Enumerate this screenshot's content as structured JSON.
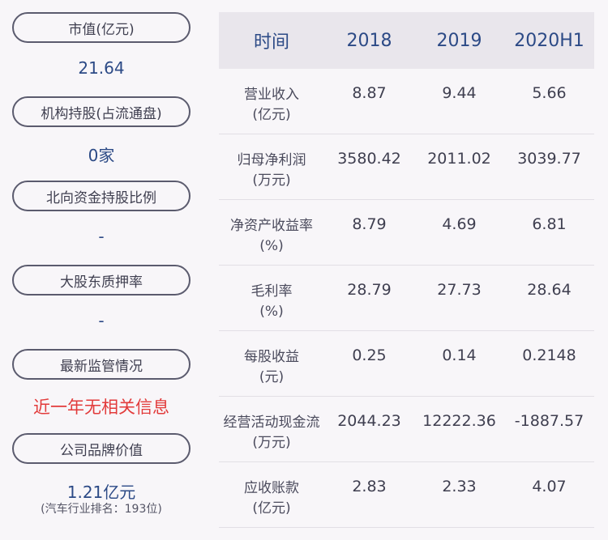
{
  "left": {
    "items": [
      {
        "label": "市值(亿元)",
        "value": "21.64"
      },
      {
        "label": "机构持股(占流通盘)",
        "value": "0家"
      },
      {
        "label": "北向资金持股比例",
        "value": "-"
      },
      {
        "label": "大股东质押率",
        "value": "-"
      },
      {
        "label": "最新监管情况",
        "value": "近一年无相关信息"
      },
      {
        "label": "公司品牌价值",
        "value": "1.21亿元",
        "note": "(汽车行业排名：193位)"
      }
    ]
  },
  "table": {
    "headers": [
      "时间",
      "2018",
      "2019",
      "2020H1"
    ],
    "rows": [
      {
        "name": "营业收入",
        "unit": "(亿元)",
        "values": [
          "8.87",
          "9.44",
          "5.66"
        ]
      },
      {
        "name": "归母净利润",
        "unit": "(万元)",
        "values": [
          "3580.42",
          "2011.02",
          "3039.77"
        ]
      },
      {
        "name": "净资产收益率",
        "unit": "(%)",
        "values": [
          "8.79",
          "4.69",
          "6.81"
        ]
      },
      {
        "name": "毛利率",
        "unit": "(%)",
        "values": [
          "28.79",
          "27.73",
          "28.64"
        ]
      },
      {
        "name": "每股收益",
        "unit": "(元)",
        "values": [
          "0.25",
          "0.14",
          "0.2148"
        ]
      },
      {
        "name": "经营活动现金流",
        "unit": "(万元)",
        "values": [
          "2044.23",
          "12222.36",
          "-1887.57"
        ]
      },
      {
        "name": "应收账款",
        "unit": "(亿元)",
        "values": [
          "2.83",
          "2.33",
          "4.07"
        ]
      }
    ]
  }
}
